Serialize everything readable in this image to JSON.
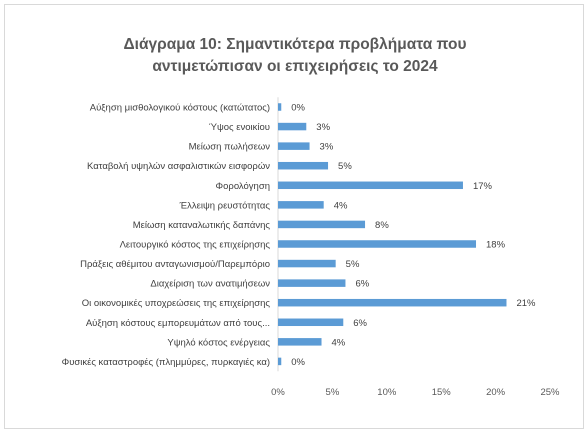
{
  "chart_data": {
    "type": "bar",
    "orientation": "horizontal",
    "title_lines": [
      "Διάγραμα 10: Σημαντικότερα προβλήματα που",
      "αντιμετώπισαν οι επιχειρήσεις το 2024"
    ],
    "categories": [
      "Αύξηση μισθολογικού κόστους (κατώτατος)",
      "Ύψος ενοικίου",
      "Μείωση πωλήσεων",
      "Καταβολή υψηλών ασφαλιστικών εισφορών",
      "Φορολόγηση",
      "Έλλειψη ρευστότητας",
      "Μείωση καταναλωτικής δαπάνης",
      "Λειτουργικό κόστος της επιχείρησης",
      "Πράξεις αθέμιτου ανταγωνισμού/Παρεμπόριο",
      "Διαχείριση των ανατιμήσεων",
      "Οι οικονομικές υποχρεώσεις της επιχείρησης",
      "Αύξηση κόστους εμπορευμάτων από τους...",
      "Υψηλό κόστος ενέργειας",
      "Φυσικές καταστροφές (πλημμύρες, πυρκαγιές κα)"
    ],
    "values": [
      0.3,
      2.6,
      2.9,
      4.6,
      17,
      4.2,
      8,
      18.2,
      5.3,
      6.2,
      21,
      6,
      4,
      0.3
    ],
    "value_labels": [
      "0%",
      "3%",
      "3%",
      "5%",
      "17%",
      "4%",
      "8%",
      "18%",
      "5%",
      "6%",
      "21%",
      "6%",
      "4%",
      "0%"
    ],
    "xlim": [
      0,
      25
    ],
    "x_ticks": [
      0,
      5,
      10,
      15,
      20,
      25
    ],
    "x_tick_labels": [
      "0%",
      "5%",
      "10%",
      "15%",
      "20%",
      "25%"
    ],
    "grid": false,
    "bar_color": "#5b9bd5"
  }
}
